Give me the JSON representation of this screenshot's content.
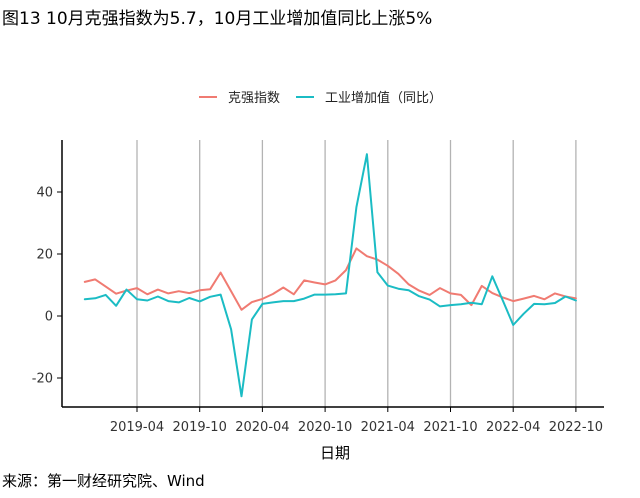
{
  "title": "图13 10月克强指数为5.7，10月工业增加值同比上涨5%",
  "source": "来源：第一财经研究院、Wind",
  "chart_data": {
    "type": "line",
    "xlabel": "日期",
    "ylabel": "",
    "ylim": [
      -30,
      55
    ],
    "yticks": [
      -20,
      0,
      20,
      40
    ],
    "xtick_labels": [
      "2019-04",
      "2019-10",
      "2020-04",
      "2020-10",
      "2021-04",
      "2021-10",
      "2022-04",
      "2022-10"
    ],
    "x": [
      "2018-11",
      "2018-12",
      "2019-01",
      "2019-02",
      "2019-03",
      "2019-04",
      "2019-05",
      "2019-06",
      "2019-07",
      "2019-08",
      "2019-09",
      "2019-10",
      "2019-11",
      "2019-12",
      "2020-01",
      "2020-02",
      "2020-03",
      "2020-04",
      "2020-05",
      "2020-06",
      "2020-07",
      "2020-08",
      "2020-09",
      "2020-10",
      "2020-11",
      "2020-12",
      "2021-01",
      "2021-02",
      "2021-03",
      "2021-04",
      "2021-05",
      "2021-06",
      "2021-07",
      "2021-08",
      "2021-09",
      "2021-10",
      "2021-11",
      "2021-12",
      "2022-01",
      "2022-02",
      "2022-03",
      "2022-04",
      "2022-05",
      "2022-06",
      "2022-07",
      "2022-08",
      "2022-09",
      "2022-10"
    ],
    "series": [
      {
        "name": "克强指数",
        "color": "#F07B72",
        "values": [
          11,
          11.8,
          9.5,
          7.2,
          8.2,
          9,
          7,
          8.5,
          7.3,
          8,
          7.4,
          8.3,
          8.6,
          14,
          8,
          2,
          4.5,
          5.5,
          7.1,
          9.2,
          7,
          11.5,
          10.8,
          10.2,
          11.5,
          14.8,
          21.8,
          19.3,
          18.2,
          16.2,
          13.6,
          10.2,
          8.2,
          6.8,
          9,
          7.3,
          6.8,
          3.5,
          9.7,
          7.4,
          6,
          4.8,
          5.6,
          6.5,
          5.4,
          7.3,
          6.3,
          5.7
        ]
      },
      {
        "name": "工业增加值（同比）",
        "color": "#1BBCC4",
        "values": [
          5.4,
          5.7,
          6.8,
          3.3,
          8.5,
          5.4,
          5,
          6.3,
          4.8,
          4.4,
          5.8,
          4.7,
          6.2,
          6.9,
          -4.3,
          -25.9,
          -1.1,
          3.9,
          4.4,
          4.8,
          4.8,
          5.6,
          6.9,
          6.9,
          7,
          7.3,
          35.1,
          52.2,
          14.1,
          9.8,
          8.8,
          8.3,
          6.4,
          5.3,
          3.1,
          3.5,
          3.8,
          4.3,
          3.8,
          12.8,
          5,
          -2.9,
          0.7,
          3.9,
          3.8,
          4.2,
          6.3,
          5
        ]
      }
    ],
    "legend_position": "top"
  }
}
